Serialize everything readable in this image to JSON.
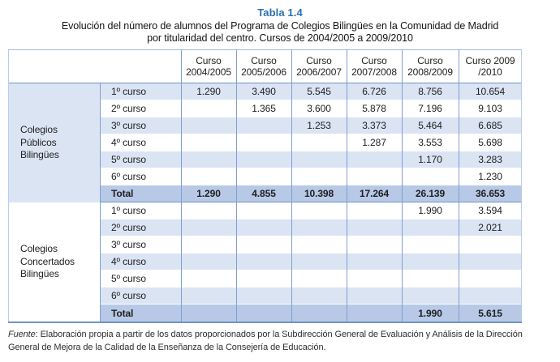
{
  "title": "Tabla 1.4",
  "subtitle": "Evolución del número de alumnos del Programa de Colegios Bilingües en la Comunidad de Madrid\npor titularidad del centro. Cursos de 2004/2005 a 2009/2010",
  "colors": {
    "accent_blue": "#2a6fad",
    "stripe": "#dbe4f3",
    "total_bg": "#b7c9e6",
    "grid_line": "#7f9fd0",
    "rule": "#6f93c6"
  },
  "table": {
    "columns": [
      "Curso\n2004/2005",
      "Curso\n2005/2006",
      "Curso\n2006/2007",
      "Curso\n2007/2008",
      "Curso\n2008/2009",
      "Curso 2009\n/2010"
    ],
    "groups": [
      {
        "label": "Colegios Públicos Bilingües",
        "rows": [
          {
            "label": "1º curso",
            "shaded": true,
            "total": false,
            "values": [
              "1.290",
              "3.490",
              "5.545",
              "6.726",
              "8.756",
              "10.654"
            ]
          },
          {
            "label": "2º curso",
            "shaded": false,
            "total": false,
            "values": [
              "",
              "1.365",
              "3.600",
              "5.878",
              "7.196",
              "9.103"
            ]
          },
          {
            "label": "3º curso",
            "shaded": true,
            "total": false,
            "values": [
              "",
              "",
              "1.253",
              "3.373",
              "5.464",
              "6.685"
            ]
          },
          {
            "label": "4º curso",
            "shaded": false,
            "total": false,
            "values": [
              "",
              "",
              "",
              "1.287",
              "3.553",
              "5.698"
            ]
          },
          {
            "label": "5º curso",
            "shaded": true,
            "total": false,
            "values": [
              "",
              "",
              "",
              "",
              "1.170",
              "3.283"
            ]
          },
          {
            "label": "6º curso",
            "shaded": false,
            "total": false,
            "values": [
              "",
              "",
              "",
              "",
              "",
              "1.230"
            ]
          },
          {
            "label": "Total",
            "shaded": false,
            "total": true,
            "values": [
              "1.290",
              "4.855",
              "10.398",
              "17.264",
              "26.139",
              "36.653"
            ]
          }
        ]
      },
      {
        "label": "Colegios Concertados Bilingües",
        "rows": [
          {
            "label": "1º curso",
            "shaded": false,
            "total": false,
            "values": [
              "",
              "",
              "",
              "",
              "1.990",
              "3.594"
            ]
          },
          {
            "label": "2º curso",
            "shaded": true,
            "total": false,
            "values": [
              "",
              "",
              "",
              "",
              "",
              "2.021"
            ]
          },
          {
            "label": "3º curso",
            "shaded": false,
            "total": false,
            "values": [
              "",
              "",
              "",
              "",
              "",
              ""
            ]
          },
          {
            "label": "4º curso",
            "shaded": true,
            "total": false,
            "values": [
              "",
              "",
              "",
              "",
              "",
              ""
            ]
          },
          {
            "label": "5º curso",
            "shaded": false,
            "total": false,
            "values": [
              "",
              "",
              "",
              "",
              "",
              ""
            ]
          },
          {
            "label": "6º curso",
            "shaded": true,
            "total": false,
            "values": [
              "",
              "",
              "",
              "",
              "",
              ""
            ]
          },
          {
            "label": "Total",
            "shaded": false,
            "total": true,
            "values": [
              "",
              "",
              "",
              "",
              "1.990",
              "5.615"
            ]
          }
        ]
      }
    ]
  },
  "footer": {
    "source_label": "Fuente",
    "source_text": ": Elaboración propia a partir de los datos proporcionados por la Subdirección General de Evaluación y Análisis de la Dirección General de Mejora de la Calidad de la Enseñanza de la Consejería de Educación."
  }
}
